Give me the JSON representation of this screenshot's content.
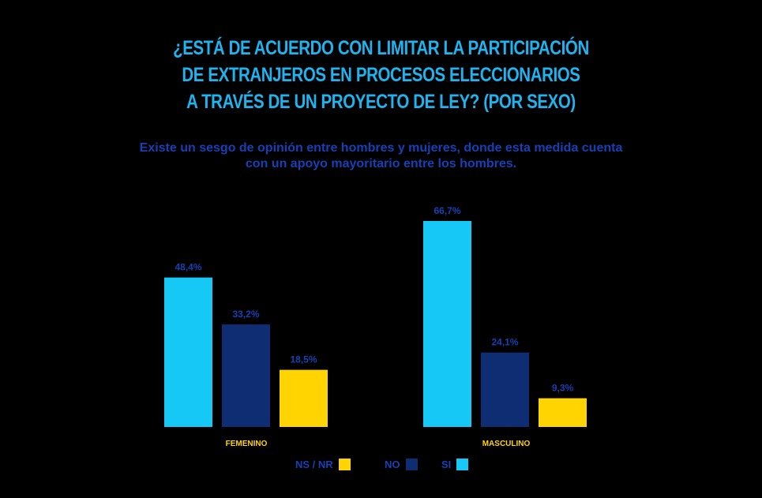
{
  "title_lines": [
    "¿ESTÁ DE ACUERDO CON LIMITAR LA PARTICIPACIÓN",
    "DE EXTRANJEROS EN PROCESOS ELECCIONARIOS",
    "A TRAVÉS DE UN PROYECTO DE LEY? (POR SEXO)"
  ],
  "subtitle_lines": [
    "Existe un sesgo de opinión entre hombres y mujeres, donde esta medida cuenta",
    "con un apoyo mayoritario entre los hombres."
  ],
  "colors": {
    "background": "#000000",
    "title": "#1EB4F0",
    "subtitle": "#1641B4",
    "si": "#15C8F5",
    "no": "#0F2D73",
    "ns_nr": "#FFD400",
    "data_label": "#1641B4",
    "category_label": "#FFD400"
  },
  "chart_data": {
    "type": "bar",
    "categories": [
      "FEMENINO",
      "MASCULINO"
    ],
    "series": [
      {
        "name": "SI",
        "values": [
          48.4,
          66.7
        ],
        "labels": [
          "48,4%",
          "66,7%"
        ],
        "color": "#15C8F5"
      },
      {
        "name": "NO",
        "values": [
          33.2,
          24.1
        ],
        "labels": [
          "33,2%",
          "24,1%"
        ],
        "color": "#0F2D73"
      },
      {
        "name": "NS / NR",
        "values": [
          18.5,
          9.3
        ],
        "labels": [
          "18,5%",
          "9,3%"
        ],
        "color": "#FFD400"
      }
    ],
    "ylim": [
      0,
      70
    ],
    "grid": false,
    "legend_position": "bottom",
    "legend_order": [
      "NS / NR",
      "NO",
      "SI"
    ]
  }
}
